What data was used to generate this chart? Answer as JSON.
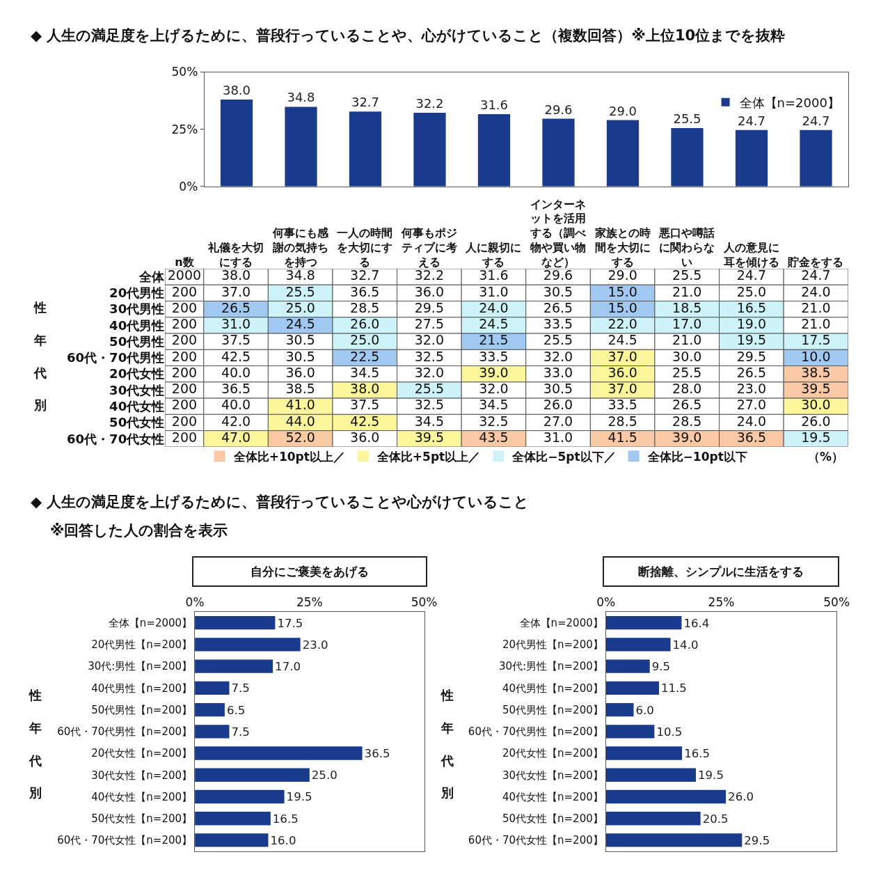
{
  "chart_data": [
    {
      "type": "bar",
      "title": "◆ 人生の満足度を上げるために、普段行っていることや、心がけていること（複数回答）※上位10位までを抜粋",
      "categories": [
        "礼儀を大切にする",
        "何事にも感謝の気持ちを持つ",
        "一人の時間を大切にする",
        "何事もポジティブに考える",
        "人に親切にする",
        "インターネットを活用する（調べ物や買い物など）",
        "家族との時間を大切にする",
        "悪口や噂話に関わらない",
        "人の意見に耳を傾ける",
        "貯金をする"
      ],
      "series": [
        {
          "name": "全体【n=2000】",
          "color": "#1a3a8c",
          "values": [
            38.0,
            34.8,
            32.7,
            32.2,
            31.6,
            29.6,
            29.0,
            25.5,
            24.7,
            24.7
          ]
        }
      ],
      "ylim": [
        0,
        50
      ],
      "yticks": [
        {
          "value": 0,
          "label": "0%"
        },
        {
          "value": 25,
          "label": "25%"
        },
        {
          "value": 50,
          "label": "50%"
        }
      ],
      "value_labels": [
        "38.0",
        "34.8",
        "32.7",
        "32.2",
        "31.6",
        "29.6",
        "29.0",
        "25.5",
        "24.7",
        "24.7"
      ],
      "legend": "top right",
      "tick_labels": "y"
    },
    {
      "type": "heatmap",
      "categories": [
        "n数",
        "礼儀を大切にする",
        "何事にも感謝の気持ちを持つ",
        "一人の時間を大切にする",
        "何事もポジティブに考える",
        "人に親切にする",
        "インターネットを活用する（調べ物や買い物など）",
        "家族との時間を大切にする",
        "悪口や噂話に関わらない",
        "人の意見に耳を傾ける",
        "貯金をする"
      ],
      "y_categories": [
        "全体",
        "20代男性",
        "30代男性",
        "40代男性",
        "50代男性",
        "60代・70代男性",
        "20代女性",
        "30代女性",
        "40代女性",
        "50代女性",
        "60代・70代女性"
      ],
      "cells": [
        [
          2000,
          38.0,
          34.8,
          32.7,
          32.2,
          31.6,
          29.6,
          29.0,
          25.5,
          24.7,
          24.7
        ],
        [
          200,
          37.0,
          25.5,
          36.5,
          36.0,
          31.0,
          30.5,
          15.0,
          21.0,
          25.0,
          24.0
        ],
        [
          200,
          26.5,
          25.0,
          28.5,
          29.5,
          24.0,
          26.5,
          15.0,
          18.5,
          16.5,
          21.0
        ],
        [
          200,
          31.0,
          24.5,
          26.0,
          27.5,
          24.5,
          33.5,
          22.0,
          17.0,
          19.0,
          21.0
        ],
        [
          200,
          37.5,
          30.5,
          25.0,
          32.0,
          21.5,
          25.5,
          24.5,
          21.0,
          19.5,
          17.5
        ],
        [
          200,
          42.5,
          30.5,
          22.5,
          32.5,
          33.5,
          32.0,
          37.0,
          30.0,
          29.5,
          10.0
        ],
        [
          200,
          40.0,
          36.0,
          34.5,
          32.0,
          39.0,
          33.0,
          36.0,
          25.5,
          26.5,
          38.5
        ],
        [
          200,
          36.5,
          38.5,
          38.0,
          25.5,
          32.0,
          30.5,
          37.0,
          28.0,
          23.0,
          39.5
        ],
        [
          200,
          40.0,
          41.0,
          37.5,
          32.5,
          34.5,
          26.0,
          33.5,
          26.5,
          27.0,
          30.0
        ],
        [
          200,
          42.0,
          44.0,
          42.5,
          34.5,
          32.5,
          27.0,
          28.5,
          28.5,
          24.0,
          26.0
        ],
        [
          200,
          47.0,
          52.0,
          36.0,
          39.5,
          43.5,
          31.0,
          41.5,
          39.0,
          36.5,
          19.5
        ]
      ],
      "cell_labels": [
        [
          "2000",
          "38.0",
          "34.8",
          "32.7",
          "32.2",
          "31.6",
          "29.6",
          "29.0",
          "25.5",
          "24.7",
          "24.7"
        ],
        [
          "200",
          "37.0",
          "25.5",
          "36.5",
          "36.0",
          "31.0",
          "30.5",
          "15.0",
          "21.0",
          "25.0",
          "24.0"
        ],
        [
          "200",
          "26.5",
          "25.0",
          "28.5",
          "29.5",
          "24.0",
          "26.5",
          "15.0",
          "18.5",
          "16.5",
          "21.0"
        ],
        [
          "200",
          "31.0",
          "24.5",
          "26.0",
          "27.5",
          "24.5",
          "33.5",
          "22.0",
          "17.0",
          "19.0",
          "21.0"
        ],
        [
          "200",
          "37.5",
          "30.5",
          "25.0",
          "32.0",
          "21.5",
          "25.5",
          "24.5",
          "21.0",
          "19.5",
          "17.5"
        ],
        [
          "200",
          "42.5",
          "30.5",
          "22.5",
          "32.5",
          "33.5",
          "32.0",
          "37.0",
          "30.0",
          "29.5",
          "10.0"
        ],
        [
          "200",
          "40.0",
          "36.0",
          "34.5",
          "32.0",
          "39.0",
          "33.0",
          "36.0",
          "25.5",
          "26.5",
          "38.5"
        ],
        [
          "200",
          "36.5",
          "38.5",
          "38.0",
          "25.5",
          "32.0",
          "30.5",
          "37.0",
          "28.0",
          "23.0",
          "39.5"
        ],
        [
          "200",
          "40.0",
          "41.0",
          "37.5",
          "32.5",
          "34.5",
          "26.0",
          "33.5",
          "26.5",
          "27.0",
          "30.0"
        ],
        [
          "200",
          "42.0",
          "44.0",
          "42.5",
          "34.5",
          "32.5",
          "27.0",
          "28.5",
          "28.5",
          "24.0",
          "26.0"
        ],
        [
          "200",
          "47.0",
          "52.0",
          "36.0",
          "39.5",
          "43.5",
          "31.0",
          "41.5",
          "39.0",
          "36.5",
          "19.5"
        ]
      ],
      "colors": [
        [
          null,
          null,
          null,
          null,
          null,
          null,
          null,
          null,
          null,
          null,
          null
        ],
        [
          null,
          null,
          "#cdf3f8",
          null,
          null,
          null,
          null,
          "#a0c8f0",
          null,
          null,
          null
        ],
        [
          null,
          "#a0c8f0",
          "#cdf3f8",
          null,
          null,
          "#cdf3f8",
          null,
          "#a0c8f0",
          "#cdf3f8",
          "#cdf3f8",
          null
        ],
        [
          null,
          "#cdf3f8",
          "#a0c8f0",
          "#cdf3f8",
          null,
          "#cdf3f8",
          null,
          "#cdf3f8",
          "#cdf3f8",
          "#cdf3f8",
          null
        ],
        [
          null,
          null,
          null,
          "#cdf3f8",
          null,
          "#a0c8f0",
          null,
          null,
          null,
          "#cdf3f8",
          "#cdf3f8"
        ],
        [
          null,
          null,
          null,
          "#a0c8f0",
          null,
          null,
          null,
          "#fbf69c",
          null,
          null,
          "#a0c8f0"
        ],
        [
          null,
          null,
          null,
          null,
          null,
          "#fbf69c",
          null,
          "#fbf69c",
          null,
          null,
          "#f8c9a4"
        ],
        [
          null,
          null,
          null,
          "#fbf69c",
          "#cdf3f8",
          null,
          null,
          "#fbf69c",
          null,
          null,
          "#f8c9a4"
        ],
        [
          null,
          null,
          "#fbf69c",
          null,
          null,
          null,
          null,
          null,
          null,
          null,
          "#fbf69c"
        ],
        [
          null,
          null,
          "#fbf69c",
          "#fbf69c",
          null,
          null,
          null,
          null,
          null,
          null,
          null
        ],
        [
          null,
          "#fbf69c",
          "#f8c9a4",
          null,
          "#fbf69c",
          "#f8c9a4",
          null,
          "#f8c9a4",
          "#f8c9a4",
          "#f8c9a4",
          "#cdf3f8"
        ]
      ],
      "series": [
        {
          "name": "全体比+10pt以上／",
          "color": "#f8c9a4",
          "values": [
            null,
            null,
            null,
            null,
            null,
            null,
            null,
            null,
            null,
            null,
            null
          ]
        },
        {
          "name": "全体比+5pt以上／",
          "color": "#fbf69c",
          "values": [
            null,
            null,
            null,
            null,
            null,
            null,
            null,
            null,
            null,
            null,
            null
          ]
        },
        {
          "name": "全体比−5pt以下／",
          "color": "#cdf3f8",
          "values": [
            null,
            null,
            null,
            null,
            null,
            null,
            null,
            null,
            null,
            null,
            null
          ]
        },
        {
          "name": "全体比−10pt以下",
          "color": "#a0c8f0",
          "values": [
            null,
            null,
            null,
            null,
            null,
            null,
            null,
            null,
            null,
            null,
            null
          ]
        }
      ],
      "legend": "bottom",
      "annotations": [
        "性年代別",
        "（%）"
      ]
    },
    {
      "type": "bar",
      "orientation": "horizontal",
      "title": "自分にご褒美をあげる",
      "categories": [
        "全体【n=2000】",
        "20代男性【n=200】",
        "30代:男性【n=200】",
        "40代男性【n=200】",
        "50代男性【n=200】",
        "60代・70代男性【n=200】",
        "20代女性【n=200】",
        "30代女性【n=200】",
        "40代女性【n=200】",
        "50代女性【n=200】",
        "60代・70代女性【n=200】"
      ],
      "values": [
        17.5,
        23.0,
        17.0,
        7.5,
        6.5,
        7.5,
        36.5,
        25.0,
        19.5,
        16.5,
        16.0
      ],
      "color": "#1a3a8c",
      "value_labels": [
        "17.5",
        "23.0",
        "17.0",
        "7.5",
        "6.5",
        "7.5",
        "36.5",
        "25.0",
        "19.5",
        "16.5",
        "16.0"
      ],
      "xlim": [
        0,
        50
      ],
      "xticks": [
        {
          "value": 0,
          "label": "0%"
        },
        {
          "value": 25,
          "label": "25%"
        },
        {
          "value": 50,
          "label": "50%"
        }
      ],
      "annotations": [
        "◆ 人生の満足度を上げるために、普段行っていることや心がけていること",
        "※回答した人の割合を表示",
        "性年代別"
      ]
    },
    {
      "type": "bar",
      "orientation": "horizontal",
      "title": "断捨離、シンプルに生活をする",
      "categories": [
        "全体【n=2000】",
        "20代男性【n=200】",
        "30代:男性【n=200】",
        "40代男性【n=200】",
        "50代男性【n=200】",
        "60代・70代男性【n=200】",
        "20代女性【n=200】",
        "30代女性【n=200】",
        "40代女性【n=200】",
        "50代女性【n=200】",
        "60代・70代女性【n=200】"
      ],
      "values": [
        16.4,
        14.0,
        9.5,
        11.5,
        6.0,
        10.5,
        16.5,
        19.5,
        26.0,
        20.5,
        29.5
      ],
      "color": "#1a3a8c",
      "value_labels": [
        "16.4",
        "14.0",
        "9.5",
        "11.5",
        "6.0",
        "10.5",
        "16.5",
        "19.5",
        "26.0",
        "20.5",
        "29.5"
      ],
      "xlim": [
        0,
        50
      ],
      "xticks": [
        {
          "value": 0,
          "label": "0%"
        },
        {
          "value": 25,
          "label": "25%"
        },
        {
          "value": 50,
          "label": "50%"
        }
      ],
      "annotations": [
        "性年代別"
      ]
    }
  ]
}
